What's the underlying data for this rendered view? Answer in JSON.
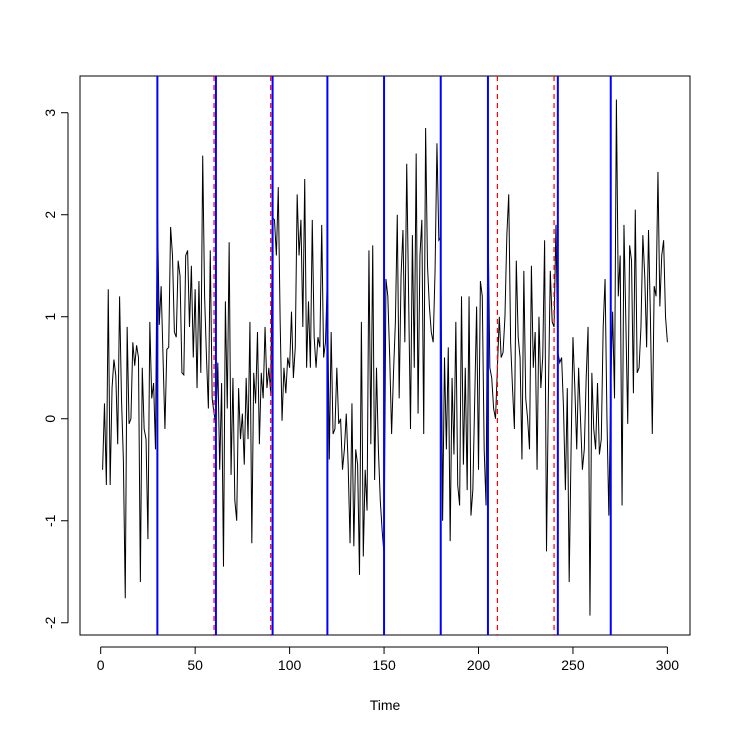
{
  "chart_data": {
    "type": "line",
    "x_label": "Time",
    "color": "#000000",
    "x": [
      1,
      2,
      3,
      4,
      5,
      6,
      7,
      8,
      9,
      10,
      11,
      12,
      13,
      14,
      15,
      16,
      17,
      18,
      19,
      20,
      21,
      22,
      23,
      24,
      25,
      26,
      27,
      28,
      29,
      30,
      31,
      32,
      33,
      34,
      35,
      36,
      37,
      38,
      39,
      40,
      41,
      42,
      43,
      44,
      45,
      46,
      47,
      48,
      49,
      50,
      51,
      52,
      53,
      54,
      55,
      56,
      57,
      58,
      59,
      60,
      61,
      62,
      63,
      64,
      65,
      66,
      67,
      68,
      69,
      70,
      71,
      72,
      73,
      74,
      75,
      76,
      77,
      78,
      79,
      80,
      81,
      82,
      83,
      84,
      85,
      86,
      87,
      88,
      89,
      90,
      91,
      92,
      93,
      94,
      95,
      96,
      97,
      98,
      99,
      100,
      101,
      102,
      103,
      104,
      105,
      106,
      107,
      108,
      109,
      110,
      111,
      112,
      113,
      114,
      115,
      116,
      117,
      118,
      119,
      120,
      121,
      122,
      123,
      124,
      125,
      126,
      127,
      128,
      129,
      130,
      131,
      132,
      133,
      134,
      135,
      136,
      137,
      138,
      139,
      140,
      141,
      142,
      143,
      144,
      145,
      146,
      147,
      148,
      149,
      150,
      151,
      152,
      153,
      154,
      155,
      156,
      157,
      158,
      159,
      160,
      161,
      162,
      163,
      164,
      165,
      166,
      167,
      168,
      169,
      170,
      171,
      172,
      173,
      174,
      175,
      176,
      177,
      178,
      179,
      180,
      181,
      182,
      183,
      184,
      185,
      186,
      187,
      188,
      189,
      190,
      191,
      192,
      193,
      194,
      195,
      196,
      197,
      198,
      199,
      200,
      201,
      202,
      203,
      204,
      205,
      206,
      207,
      208,
      209,
      210,
      211,
      212,
      213,
      214,
      215,
      216,
      217,
      218,
      219,
      220,
      221,
      222,
      223,
      224,
      225,
      226,
      227,
      228,
      229,
      230,
      231,
      232,
      233,
      234,
      235,
      236,
      237,
      238,
      239,
      240,
      241,
      242,
      243,
      244,
      245,
      246,
      247,
      248,
      249,
      250,
      251,
      252,
      253,
      254,
      255,
      256,
      257,
      258,
      259,
      260,
      261,
      262,
      263,
      264,
      265,
      266,
      267,
      268,
      269,
      270,
      271,
      272,
      273,
      274,
      275,
      276,
      277,
      278,
      279,
      280,
      281,
      282,
      283,
      284,
      285,
      286,
      287,
      288,
      289,
      290,
      291,
      292,
      293,
      294,
      295,
      296,
      297,
      298,
      299,
      300
    ],
    "values": [
      -0.5,
      0.15,
      -0.65,
      1.27,
      -0.65,
      0.3,
      0.58,
      0.42,
      -0.25,
      1.2,
      0.2,
      -0.4,
      -1.76,
      0.9,
      -0.05,
      0.0,
      0.75,
      0.52,
      0.72,
      0.6,
      -1.6,
      0.5,
      -0.1,
      -0.2,
      -1.18,
      0.95,
      0.2,
      0.35,
      -0.3,
      2.08,
      0.92,
      1.3,
      0.6,
      -0.1,
      0.68,
      0.7,
      1.88,
      1.6,
      0.85,
      0.8,
      1.55,
      1.4,
      0.45,
      0.43,
      1.6,
      1.65,
      0.9,
      1.5,
      0.6,
      1.27,
      0.3,
      1.35,
      0.45,
      2.58,
      1.2,
      0.6,
      0.1,
      1.65,
      0.2,
      0.05,
      -0.05,
      0.55,
      -0.5,
      0.35,
      -1.45,
      1.15,
      0.1,
      1.73,
      -0.55,
      0.4,
      -0.8,
      -1.0,
      0.3,
      -0.2,
      0.05,
      -0.45,
      0.4,
      -0.2,
      0.95,
      -1.22,
      0.45,
      0.15,
      0.85,
      -0.25,
      0.45,
      0.2,
      0.9,
      0.3,
      0.5,
      0.25,
      1.97,
      1.95,
      1.6,
      2.27,
      0.95,
      -0.02,
      0.5,
      0.25,
      0.6,
      0.5,
      1.05,
      0.4,
      0.7,
      2.2,
      1.6,
      1.95,
      0.9,
      2.35,
      0.5,
      1.15,
      0.5,
      1.95,
      0.8,
      0.5,
      0.8,
      0.7,
      1.9,
      0.6,
      0.75,
      1.4,
      -0.4,
      0.85,
      -0.15,
      -0.1,
      0.5,
      -0.05,
      0.0,
      -0.5,
      -0.3,
      0.05,
      -0.45,
      -1.22,
      0.15,
      -1.25,
      -0.3,
      -0.45,
      -1.53,
      0.95,
      -1.35,
      -0.5,
      -0.9,
      1.65,
      -0.25,
      1.7,
      -0.6,
      0.5,
      -0.3,
      -0.8,
      -1.1,
      -1.33,
      1.37,
      1.2,
      0.6,
      -0.15,
      0.45,
      0.95,
      2.0,
      0.2,
      1.4,
      1.85,
      0.75,
      2.5,
      1.2,
      -0.1,
      1.8,
      0.5,
      2.6,
      0.05,
      1.6,
      1.95,
      -0.15,
      2.85,
      1.5,
      1.1,
      0.85,
      0.75,
      1.45,
      2.7,
      1.75,
      1.78,
      -1.0,
      0.6,
      -0.3,
      0.7,
      -1.2,
      0.4,
      -0.35,
      0.95,
      -0.65,
      -0.85,
      1.2,
      -0.45,
      0.5,
      -0.7,
      1.2,
      -0.95,
      -0.7,
      0.2,
      1.1,
      -0.5,
      1.35,
      1.2,
      -0.3,
      -0.85,
      2.0,
      0.5,
      0.4,
      0.1,
      0.0,
      0.5,
      1.0,
      0.6,
      0.65,
      1.0,
      1.8,
      2.2,
      0.75,
      0.3,
      -0.1,
      1.55,
      0.8,
      0.6,
      -0.4,
      1.45,
      0.2,
      0.0,
      -0.3,
      1.5,
      0.5,
      0.85,
      -0.5,
      1.0,
      0.3,
      0.6,
      1.75,
      -1.3,
      0.25,
      1.45,
      0.95,
      0.9,
      1.9,
      0.65,
      0.55,
      0.6,
      0.1,
      -0.7,
      0.3,
      -1.6,
      -0.3,
      0.8,
      0.3,
      -0.3,
      0.5,
      0.0,
      -0.5,
      -0.3,
      0.4,
      0.9,
      -1.93,
      0.45,
      -0.1,
      -0.3,
      0.35,
      -0.35,
      -0.2,
      0.9,
      1.37,
      0.0,
      -0.95,
      0.3,
      1.05,
      0.2,
      3.13,
      1.2,
      1.6,
      -0.85,
      1.9,
      0.95,
      -0.05,
      1.7,
      1.55,
      0.25,
      2.05,
      0.45,
      0.5,
      0.9,
      1.8,
      1.4,
      0.7,
      1.85,
      1.0,
      -0.15,
      1.3,
      1.2,
      2.42,
      1.1,
      1.6,
      1.75,
      1.0,
      0.75
    ],
    "vlines": [
      {
        "x": 30,
        "color": "#0000ff",
        "style": "solid"
      },
      {
        "x": 61,
        "color": "#0000ff",
        "style": "solid"
      },
      {
        "x": 91,
        "color": "#0000ff",
        "style": "solid"
      },
      {
        "x": 120,
        "color": "#0000ff",
        "style": "solid"
      },
      {
        "x": 150,
        "color": "#0000ff",
        "style": "solid"
      },
      {
        "x": 180,
        "color": "#0000ff",
        "style": "solid"
      },
      {
        "x": 205,
        "color": "#0000ff",
        "style": "solid"
      },
      {
        "x": 242,
        "color": "#0000ff",
        "style": "solid"
      },
      {
        "x": 270,
        "color": "#0000ff",
        "style": "solid"
      },
      {
        "x": 60,
        "color": "#ff0000",
        "style": "dashed"
      },
      {
        "x": 90,
        "color": "#ff0000",
        "style": "dashed"
      },
      {
        "x": 210,
        "color": "#ff0000",
        "style": "dashed"
      },
      {
        "x": 240,
        "color": "#ff0000",
        "style": "dashed"
      }
    ],
    "xlim": [
      -10.96,
      311.96
    ],
    "ylim": [
      -2.12,
      3.36
    ],
    "xticks": [
      0,
      50,
      100,
      150,
      200,
      250,
      300
    ],
    "yticks": [
      -2,
      -1,
      0,
      1,
      2,
      3
    ]
  }
}
